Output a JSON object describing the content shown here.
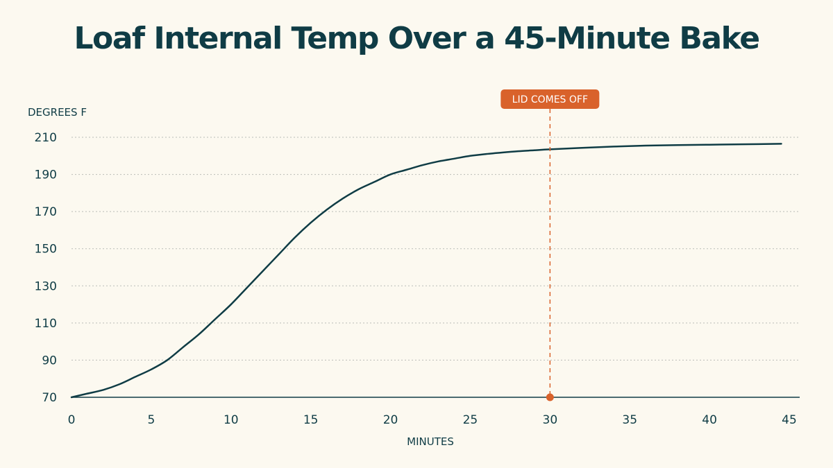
{
  "chart_data": {
    "type": "line",
    "title": "Loaf Internal Temp Over a 45-Minute Bake",
    "xlabel": "MINUTES",
    "ylabel": "DEGREES F",
    "xlim": [
      0,
      45
    ],
    "ylim": [
      70,
      210
    ],
    "x_ticks": [
      0,
      5,
      10,
      15,
      20,
      25,
      30,
      35,
      40,
      45
    ],
    "y_ticks": [
      70,
      90,
      110,
      130,
      150,
      170,
      190,
      210
    ],
    "grid": "horizontal-dotted",
    "series": [
      {
        "x": [
          0,
          1,
          2,
          3,
          4,
          5,
          6,
          7,
          8,
          9,
          10,
          11,
          12,
          13,
          14,
          15,
          16,
          17,
          18,
          19,
          20,
          21,
          22,
          23,
          24,
          25,
          26,
          27,
          28,
          29,
          30,
          32,
          34,
          36,
          38,
          40,
          42,
          44.5
        ],
        "y": [
          70,
          72,
          74,
          77,
          81,
          85,
          90,
          97,
          104,
          112,
          120,
          129,
          138,
          147,
          156,
          164,
          171,
          177,
          182,
          186,
          190,
          192.5,
          195,
          197,
          198.5,
          200,
          201,
          201.8,
          202.5,
          203,
          203.5,
          204.3,
          205,
          205.5,
          205.8,
          206,
          206.2,
          206.5
        ],
        "color": "#0f3c45"
      }
    ],
    "annotations": [
      {
        "label": "LID COMES OFF",
        "x": 30,
        "color": "#d9622b"
      }
    ]
  }
}
